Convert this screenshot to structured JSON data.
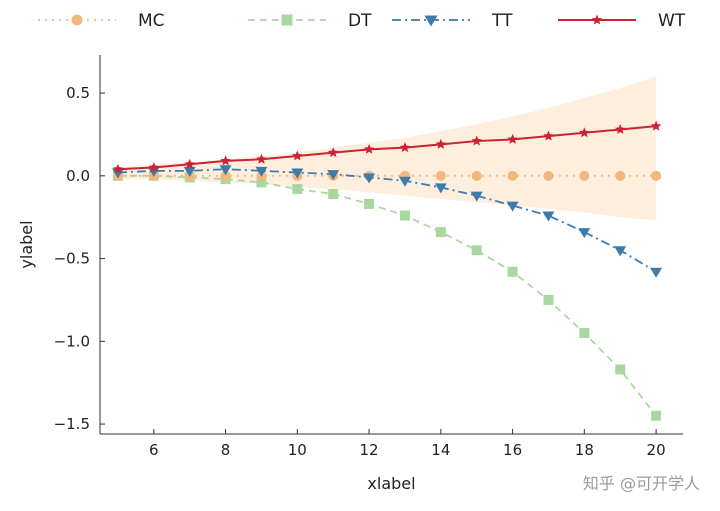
{
  "chart_data": {
    "type": "line",
    "title": "",
    "xlabel": "xlabel",
    "ylabel": "ylabel",
    "xlim": [
      4.5,
      20.75
    ],
    "ylim": [
      -1.56,
      0.73
    ],
    "x_ticks": [
      6,
      8,
      10,
      12,
      14,
      16,
      18,
      20
    ],
    "y_ticks": [
      0.5,
      0.0,
      -0.5,
      -1.0,
      -1.5
    ],
    "y_tick_labels": [
      "0.5",
      "0.0",
      "−0.5",
      "−1.0",
      "−1.5"
    ],
    "grid": false,
    "legend_position": "top",
    "x": [
      5,
      6,
      7,
      8,
      9,
      10,
      11,
      12,
      13,
      14,
      15,
      16,
      17,
      18,
      19,
      20
    ],
    "series": [
      {
        "name": "MC",
        "color": "#f2b77c",
        "marker": "circle",
        "line_style": "dotted",
        "values": [
          0,
          0,
          0,
          0,
          0,
          0,
          0,
          0,
          0,
          0,
          0,
          0,
          0,
          0,
          0,
          0
        ],
        "band_lower": [
          -0.02,
          -0.02,
          -0.03,
          -0.04,
          -0.05,
          -0.07,
          -0.08,
          -0.1,
          -0.12,
          -0.14,
          -0.16,
          -0.18,
          -0.2,
          -0.22,
          -0.25,
          -0.27
        ],
        "band_upper": [
          0.05,
          0.07,
          0.08,
          0.1,
          0.12,
          0.14,
          0.17,
          0.2,
          0.23,
          0.27,
          0.31,
          0.36,
          0.41,
          0.47,
          0.53,
          0.6
        ]
      },
      {
        "name": "DT",
        "color": "#a8d8a0",
        "marker": "square",
        "line_style": "dashed",
        "values": [
          0.0,
          0.0,
          -0.01,
          -0.02,
          -0.04,
          -0.08,
          -0.11,
          -0.17,
          -0.24,
          -0.34,
          -0.45,
          -0.58,
          -0.75,
          -0.95,
          -1.17,
          -1.45
        ]
      },
      {
        "name": "TT",
        "color": "#3d7bab",
        "marker": "triangle-down",
        "line_style": "dashdot",
        "values": [
          0.02,
          0.03,
          0.03,
          0.04,
          0.03,
          0.02,
          0.01,
          -0.01,
          -0.03,
          -0.07,
          -0.12,
          -0.18,
          -0.24,
          -0.34,
          -0.45,
          -0.58
        ]
      },
      {
        "name": "WT",
        "color": "#cc2233",
        "marker": "star",
        "line_style": "solid",
        "values": [
          0.04,
          0.05,
          0.07,
          0.09,
          0.1,
          0.12,
          0.14,
          0.16,
          0.17,
          0.19,
          0.21,
          0.22,
          0.24,
          0.26,
          0.28,
          0.3
        ]
      }
    ]
  },
  "watermark": {
    "text": "知乎 @可开学人"
  }
}
